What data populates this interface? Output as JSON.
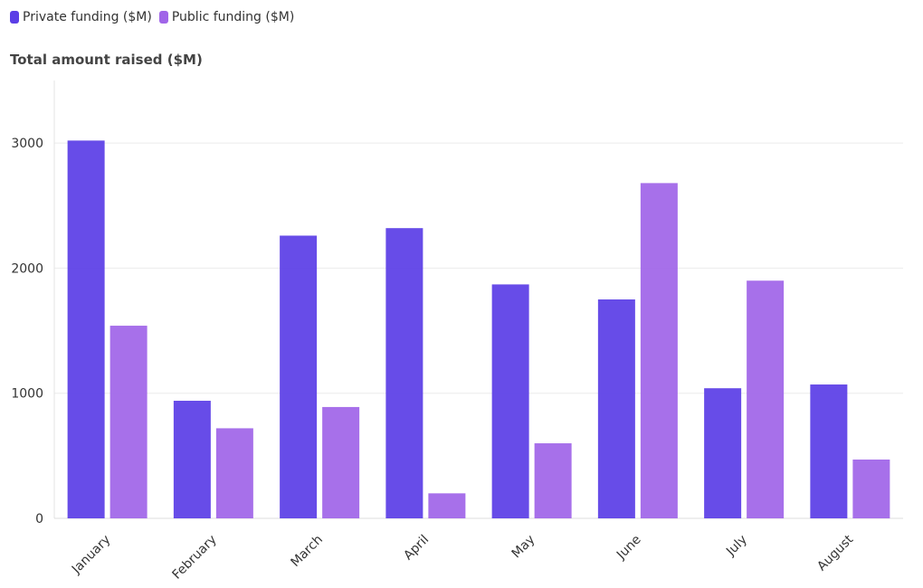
{
  "legend": [
    {
      "label": "Private funding ($M)",
      "color": "#5b3ee6"
    },
    {
      "label": "Public funding ($M)",
      "color": "#a065e8"
    }
  ],
  "chart_data": {
    "type": "bar",
    "title": "Total amount raised ($M)",
    "xlabel": "",
    "ylabel": "",
    "categories": [
      "January",
      "February",
      "March",
      "April",
      "May",
      "June",
      "July",
      "August"
    ],
    "series": [
      {
        "name": "Private funding ($M)",
        "color": "#5b3ee6",
        "values": [
          3020,
          940,
          2260,
          2320,
          1870,
          1750,
          1040,
          1070
        ]
      },
      {
        "name": "Public funding ($M)",
        "color": "#a065e8",
        "values": [
          1540,
          720,
          890,
          200,
          600,
          2680,
          1900,
          470
        ]
      }
    ],
    "ylim": [
      0,
      3500
    ],
    "yticks": [
      0,
      1000,
      2000,
      3000
    ],
    "grid": true,
    "legend_position": "top-left"
  }
}
